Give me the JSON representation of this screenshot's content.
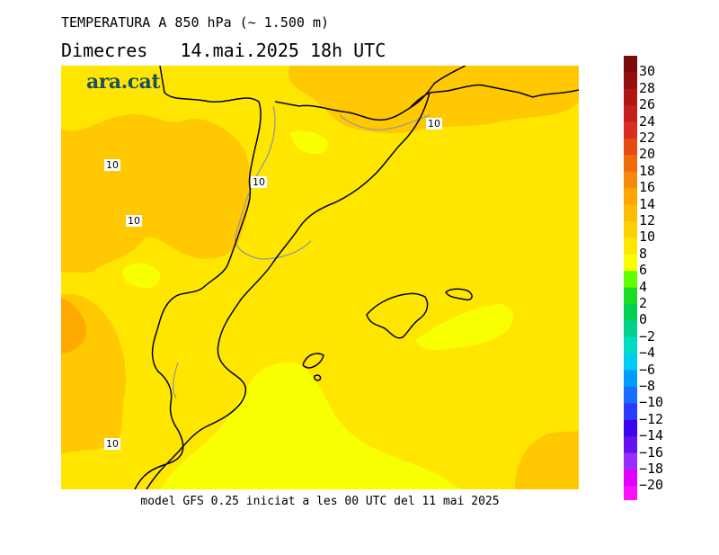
{
  "header": {
    "title": "TEMPERATURA A 850 hPa (~ 1.500 m)",
    "date": "Dimecres   14.mai.2025 18h UTC"
  },
  "footer": "model GFS 0.25 iniciat a les 00 UTC del 11 mai 2025",
  "logo": "ara.cat",
  "colors": {
    "fill_8_10": "#ffe600",
    "fill_10_12": "#ffc800",
    "fill_6_8": "#f8ff00",
    "fill_12_14": "#ffaa00",
    "coast": "#000000",
    "border": "#9a9a9a"
  },
  "map": {
    "contour_labels": [
      "10",
      "10",
      "10",
      "10",
      "10"
    ]
  },
  "legend": {
    "labels": [
      "30",
      "28",
      "26",
      "24",
      "22",
      "20",
      "18",
      "16",
      "14",
      "12",
      "10",
      "8",
      "6",
      "4",
      "2",
      "0",
      "−2",
      "−4",
      "−6",
      "−8",
      "−10",
      "−12",
      "−14",
      "−16",
      "−18",
      "−20"
    ],
    "colors": [
      "#7a0b0b",
      "#950f10",
      "#b01515",
      "#c61d1d",
      "#da2c20",
      "#e84a13",
      "#ee6a0a",
      "#f5890a",
      "#ffa500",
      "#ffbb00",
      "#ffd000",
      "#ffe600",
      "#f8ff00",
      "#60ff00",
      "#19dd24",
      "#00cf51",
      "#00d28d",
      "#00dcc3",
      "#00cdf5",
      "#009cff",
      "#1a6eff",
      "#2b3bff",
      "#3c05f0",
      "#6610f0",
      "#9a2cff",
      "#e000ff",
      "#ff10ff"
    ]
  }
}
